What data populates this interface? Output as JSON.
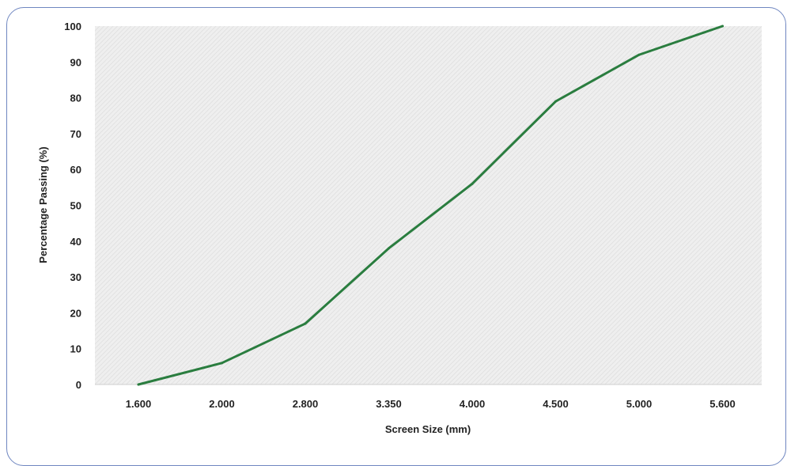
{
  "chart_data": {
    "type": "line",
    "title": "",
    "xlabel": "Screen Size (mm)",
    "ylabel": "Percentage Passing (%)",
    "categories": [
      "1.600",
      "2.000",
      "2.800",
      "3.350",
      "4.000",
      "4.500",
      "5.000",
      "5.600"
    ],
    "ylim": [
      0,
      100
    ],
    "yticks": [
      0,
      10,
      20,
      30,
      40,
      50,
      60,
      70,
      80,
      90,
      100
    ],
    "series": [
      {
        "values": [
          0,
          6,
          17,
          38,
          56,
          79,
          92,
          100
        ]
      }
    ],
    "grid": false,
    "legend": "none",
    "colors": {
      "line": "#2a7d3f",
      "plot_background": "#eeeeee",
      "plot_hatch": "#dcdcdc",
      "frame_border": "#6f86c0",
      "text": "#222222"
    }
  }
}
